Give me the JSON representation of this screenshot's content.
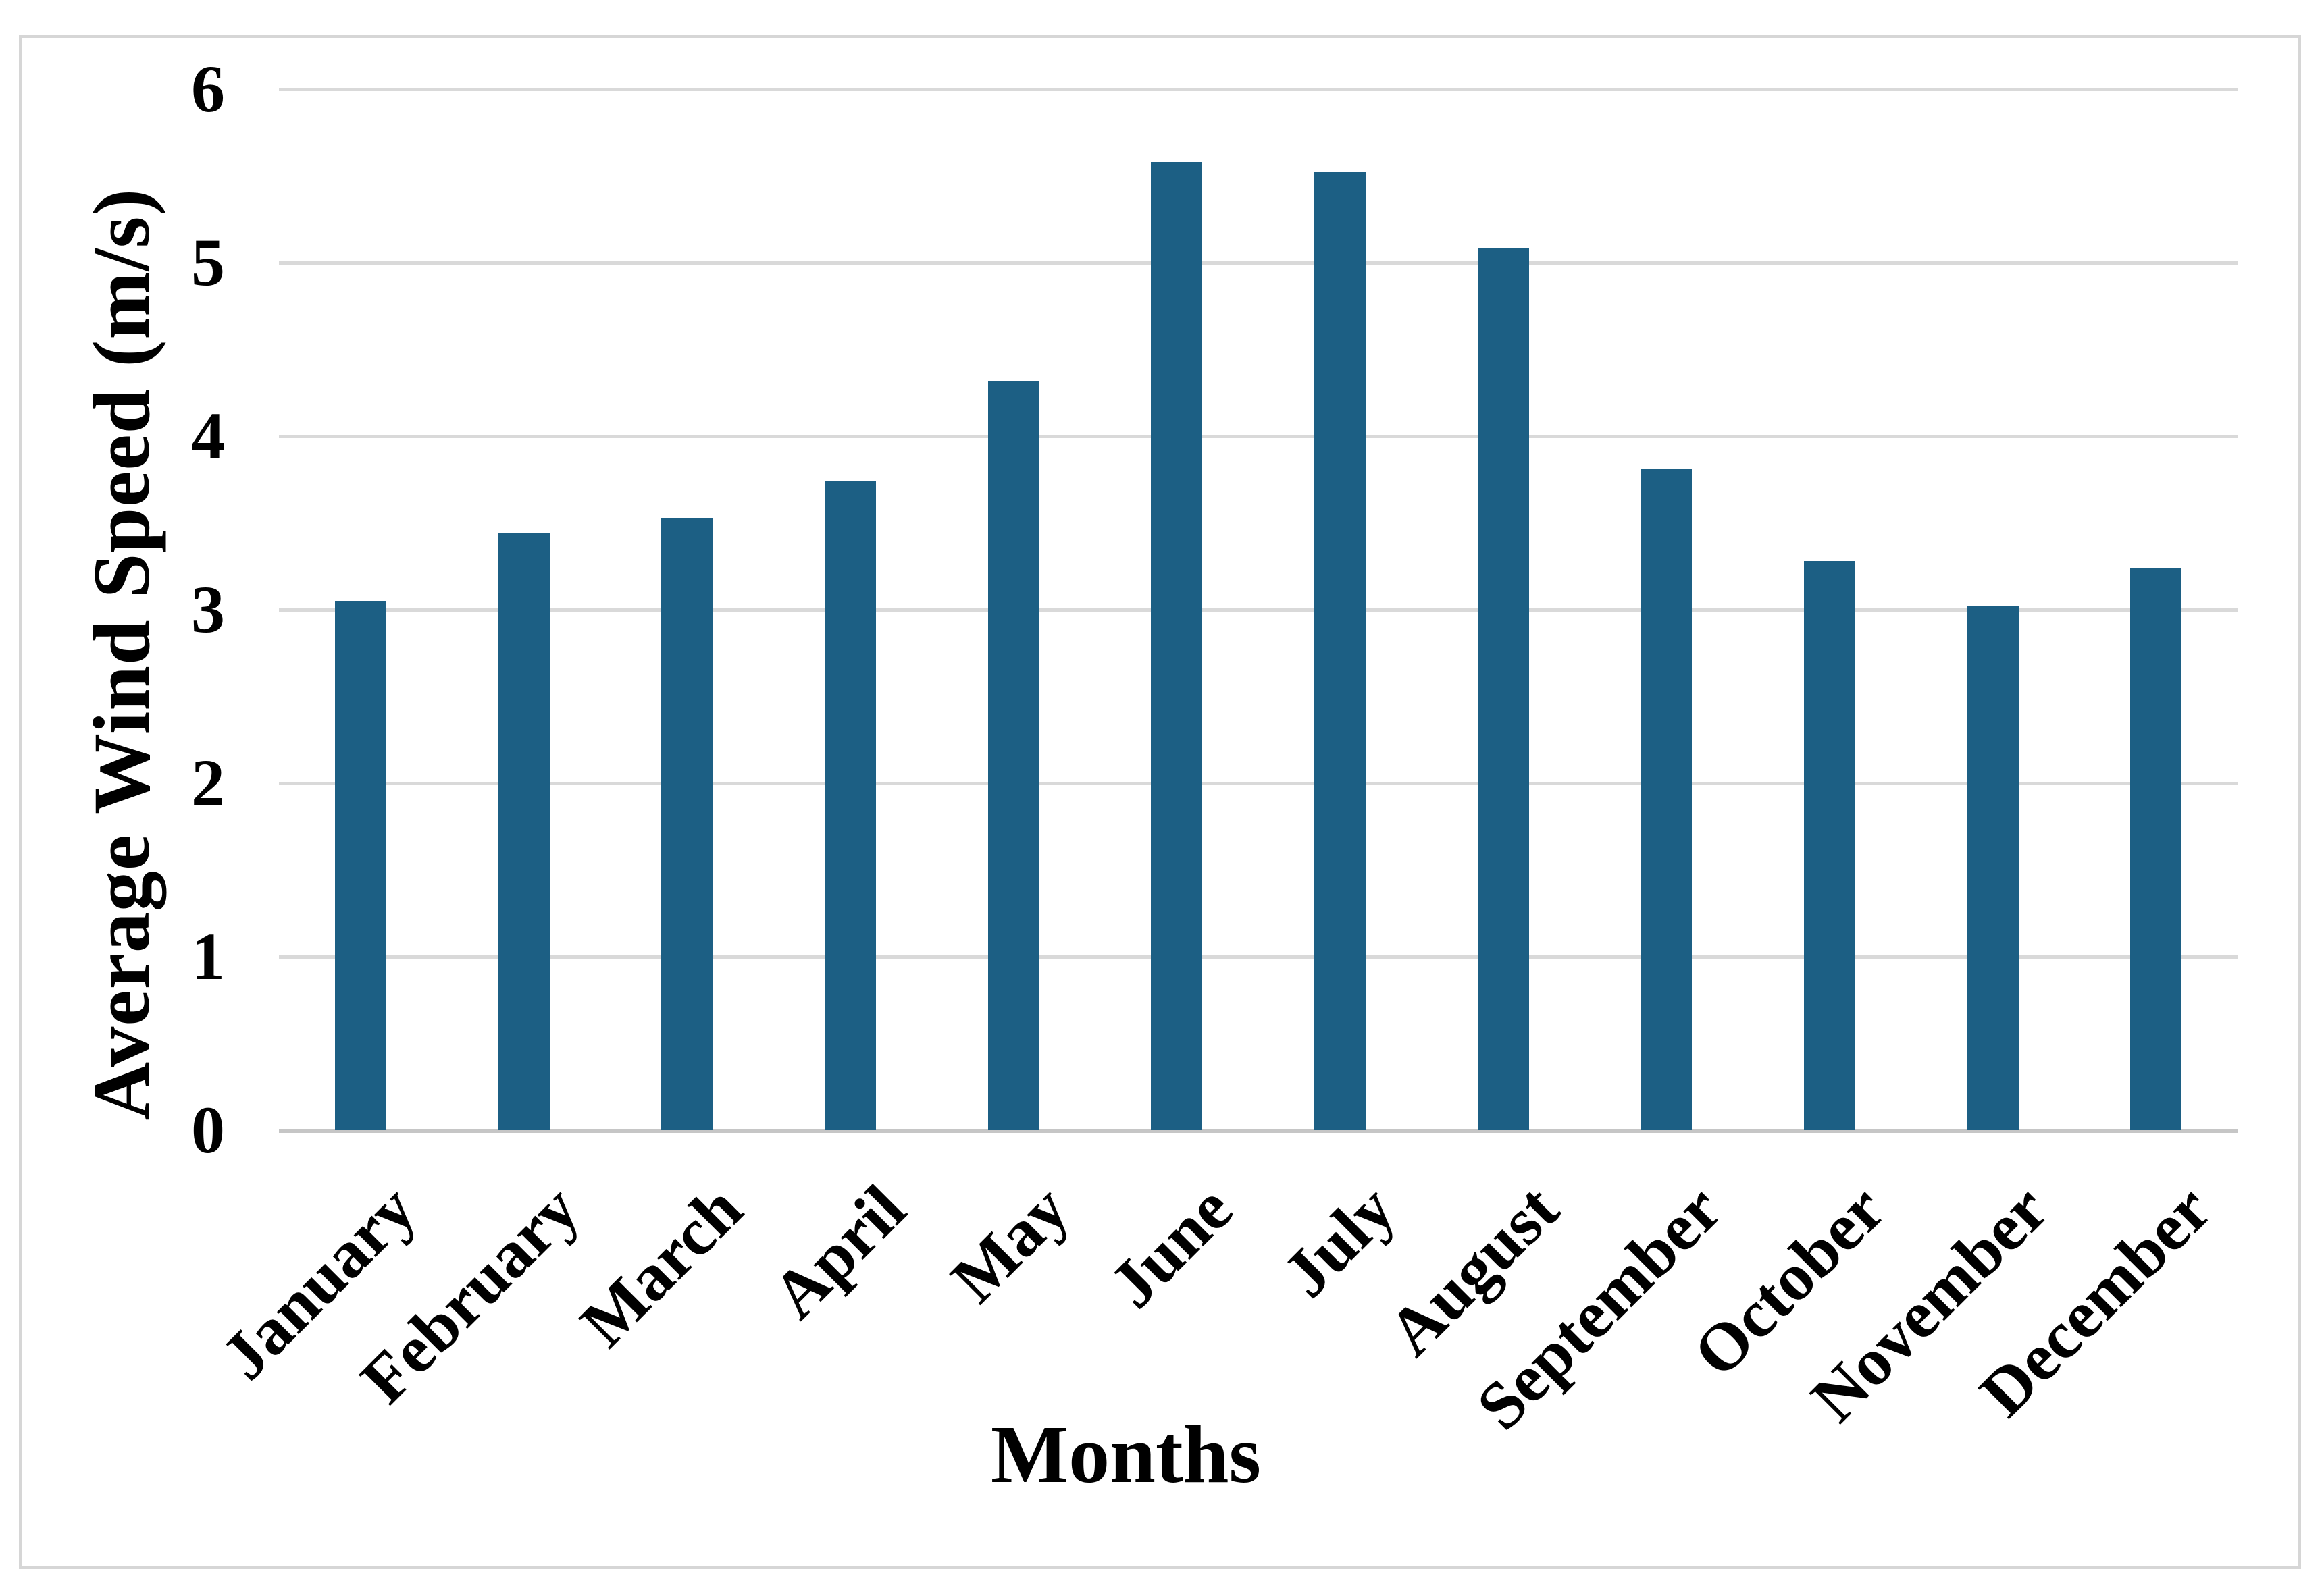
{
  "figure": {
    "background": "#ffffff",
    "border_color": "#d6d6d6"
  },
  "chart_data": {
    "type": "bar",
    "title": "",
    "categories": [
      "January",
      "February",
      "March",
      "April",
      "May",
      "June",
      "July",
      "August",
      "September",
      "October",
      "November",
      "December"
    ],
    "values": [
      3.05,
      3.44,
      3.53,
      3.74,
      4.32,
      5.58,
      5.52,
      5.08,
      3.81,
      3.28,
      3.02,
      3.24
    ],
    "xlabel": "Months",
    "ylabel": "Average Wind Speed (m/s)",
    "ylim": [
      0,
      6
    ],
    "yticks": [
      0,
      1,
      2,
      3,
      4,
      5,
      6
    ],
    "grid": "horizontal gridlines at each integer",
    "legend": "none",
    "bar_color": "#1c5f84",
    "gridline_color": "#d9d9d9",
    "axisline_color": "#c6c6c6",
    "text_color": "#000000"
  }
}
